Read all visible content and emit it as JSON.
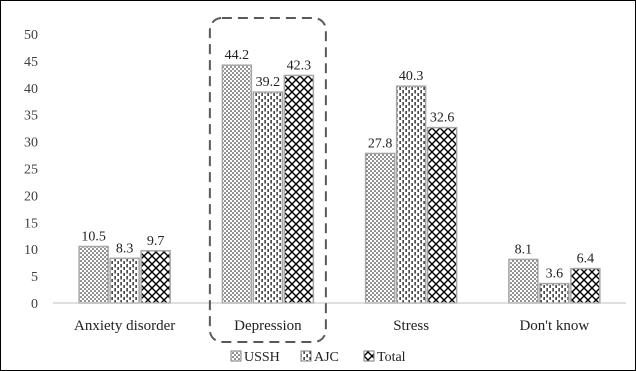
{
  "chart_data": {
    "type": "bar",
    "categories": [
      "Anxiety disorder",
      "Depression",
      "Stress",
      "Don't know"
    ],
    "series": [
      {
        "name": "USSH",
        "values": [
          10.5,
          44.2,
          27.8,
          8.1
        ],
        "pattern": "dots"
      },
      {
        "name": "AJC",
        "values": [
          8.3,
          39.2,
          40.3,
          3.6
        ],
        "pattern": "dashes"
      },
      {
        "name": "Total",
        "values": [
          9.7,
          42.3,
          32.6,
          6.4
        ],
        "pattern": "crosshatch"
      }
    ],
    "ylim": [
      0,
      50
    ],
    "yticks": [
      0,
      5,
      10,
      15,
      20,
      25,
      30,
      35,
      40,
      45,
      50
    ],
    "grid": false,
    "legend_position": "bottom",
    "highlighted_category": "Depression",
    "colors": {
      "bar_outline": "#a6a6a6",
      "pattern": "#000000",
      "frame": "#000000",
      "highlight_box": "#595959",
      "axis": "#bfbfbf"
    }
  }
}
